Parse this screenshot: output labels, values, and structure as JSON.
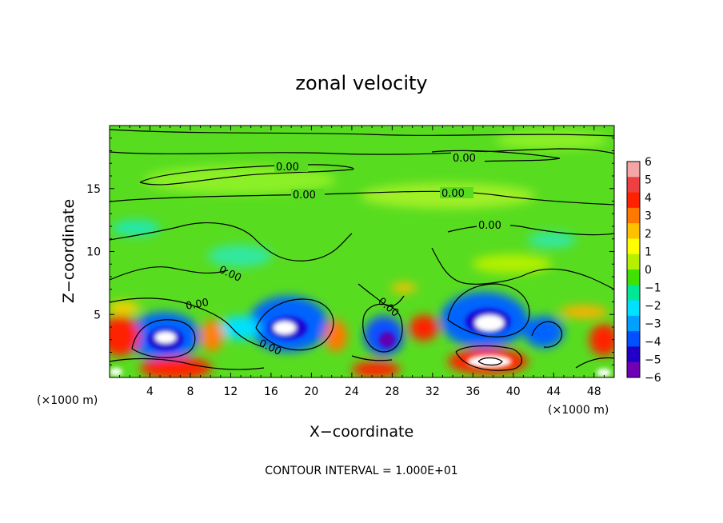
{
  "chart_data": {
    "type": "heatmap",
    "title": "zonal velocity",
    "xlabel": "X−coordinate",
    "ylabel": "Z−coordinate",
    "x_unit_label": "(×1000 m)",
    "y_unit_label": "(×1000 m)",
    "footnote": "CONTOUR INTERVAL = 1.000E+01",
    "xlim": [
      0,
      50
    ],
    "ylim": [
      0,
      20
    ],
    "x_ticks": [
      4,
      8,
      12,
      16,
      20,
      24,
      28,
      32,
      36,
      40,
      44,
      48
    ],
    "y_ticks": [
      5,
      10,
      15
    ],
    "colorbar": {
      "ticks": [
        6,
        5,
        4,
        3,
        2,
        1,
        0,
        -1,
        -2,
        -3,
        -4,
        -5,
        -6
      ],
      "colors": [
        "#f4a6a6",
        "#ee4040",
        "#ff2200",
        "#ff7800",
        "#ffc000",
        "#ffff00",
        "#b4f000",
        "#40e000",
        "#00e896",
        "#00e0ff",
        "#00a0ff",
        "#0050ff",
        "#2000c8",
        "#7000b4"
      ]
    },
    "contour_labels": [
      "0.00",
      "0.00",
      "0.00",
      "0.00",
      "0.00",
      "0.00",
      "0.00",
      "0.00",
      "0.00"
    ],
    "field_colors": {
      "background": "#58dc20",
      "light_green": "#8cf028",
      "yellow_green": "#b4f000",
      "cyan": "#00e0c8",
      "blue": "#0064ff",
      "dark_blue": "#2000d0",
      "purple": "#6000b0",
      "red": "#ff2200",
      "orange": "#ff8000",
      "yellow": "#ffd000",
      "white": "#ffffff"
    }
  }
}
